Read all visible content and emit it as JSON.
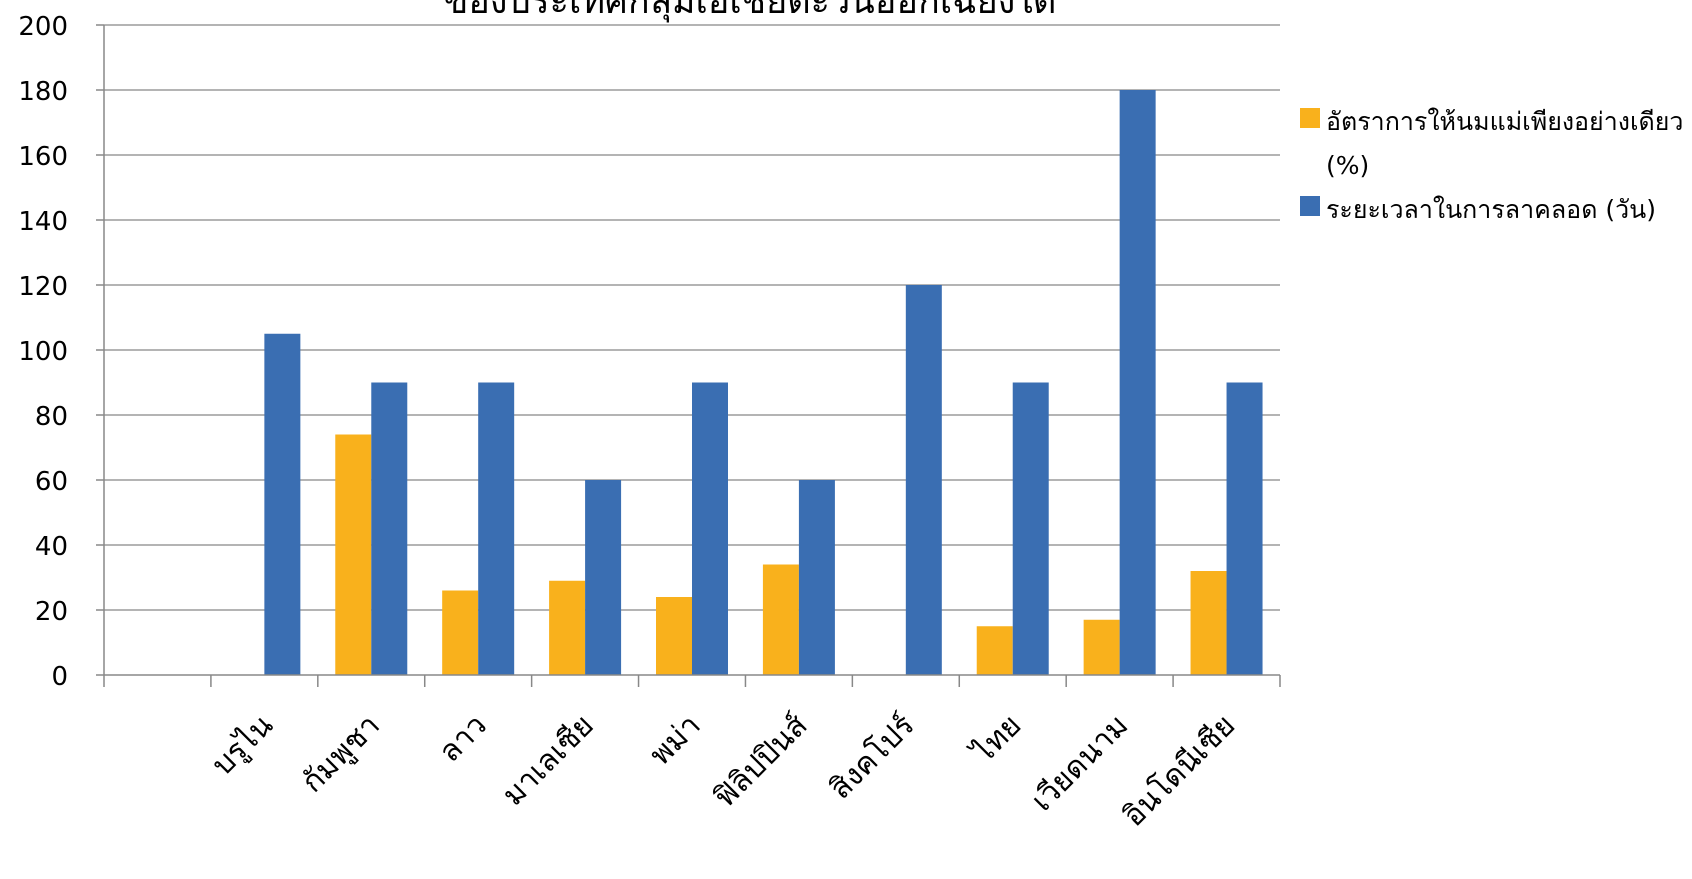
{
  "chart_data": {
    "type": "bar",
    "title": "ของประเทศกลุ่มเอเชียตะวันออกเฉียงใต้",
    "categories": [
      "",
      "บรูไน",
      "กัมพูชา",
      "ลาว",
      "มาเลเซีย",
      "พม่า",
      "ฟิลิปปินส์",
      "สิงคโปร์",
      "ไทย",
      "เวียดนาม",
      "อินโดนีเซีย"
    ],
    "series": [
      {
        "name": "อัตราการให้นมแม่เพียงอย่างเดียว (%)",
        "color": "#F9B11C",
        "values": [
          null,
          null,
          74,
          26,
          29,
          24,
          34,
          null,
          15,
          17,
          32
        ]
      },
      {
        "name": "ระยะเวลาในการลาคลอด (วัน)",
        "color": "#3A6EB2",
        "values": [
          null,
          105,
          90,
          90,
          60,
          90,
          60,
          120,
          90,
          180,
          90
        ]
      }
    ],
    "ylim": [
      0,
      200
    ],
    "yticks": [
      0,
      20,
      40,
      60,
      80,
      100,
      120,
      140,
      160,
      180,
      200
    ],
    "xlabel": "",
    "ylabel": "",
    "grid": true,
    "legend_position": "right"
  }
}
